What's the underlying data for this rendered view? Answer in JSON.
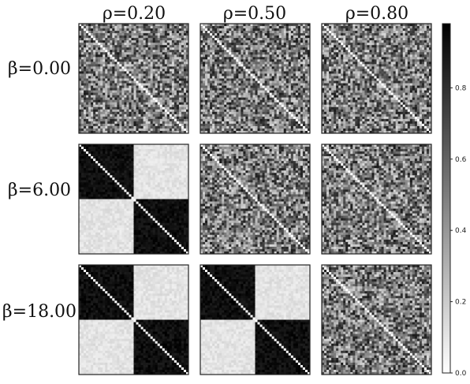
{
  "chart_data": {
    "type": "heatmap",
    "layout": "3x3 grid of matrix panels with shared grayscale colorbar at right",
    "colormap": "Greys (white = 0, black = 1)",
    "column_labels": [
      "ρ=0.20",
      "ρ=0.50",
      "ρ=0.80"
    ],
    "row_labels": [
      "β=0.00",
      "β=6.00",
      "β=18.00"
    ],
    "panels": [
      {
        "row": 0,
        "col": 0,
        "pattern": "random"
      },
      {
        "row": 0,
        "col": 1,
        "pattern": "random"
      },
      {
        "row": 0,
        "col": 2,
        "pattern": "random"
      },
      {
        "row": 1,
        "col": 0,
        "pattern": "block"
      },
      {
        "row": 1,
        "col": 1,
        "pattern": "random"
      },
      {
        "row": 1,
        "col": 2,
        "pattern": "random"
      },
      {
        "row": 2,
        "col": 0,
        "pattern": "block"
      },
      {
        "row": 2,
        "col": 1,
        "pattern": "block"
      },
      {
        "row": 2,
        "col": 2,
        "pattern": "random"
      }
    ],
    "diagonal": "white",
    "colorbar": {
      "range": [
        0.0,
        0.98
      ],
      "ticks": [
        0.0,
        0.2,
        0.4,
        0.6,
        0.8
      ],
      "tick_labels": [
        "0.0",
        "0.2",
        "0.4",
        "0.6",
        "0.8"
      ]
    },
    "grid": false,
    "legend": "none"
  }
}
